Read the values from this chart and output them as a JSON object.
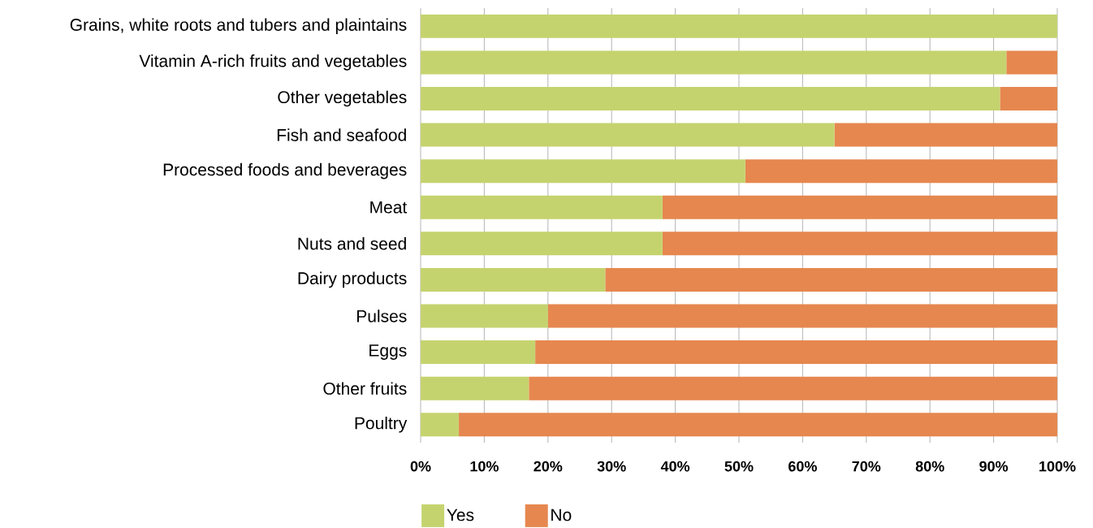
{
  "chart_data": {
    "type": "bar",
    "orientation": "horizontal",
    "stacked": true,
    "categories": [
      "Grains, white roots and tubers and plaintains",
      "Vitamin A-rich fruits and vegetables",
      "Other vegetables",
      "Fish and seafood",
      "Processed foods and beverages",
      "Meat",
      "Nuts and seed",
      "Dairy products",
      "Pulses",
      "Eggs",
      "Other fruits",
      "Poultry"
    ],
    "series": [
      {
        "name": "Yes",
        "color": "#c5d36e",
        "values": [
          100,
          92,
          91,
          65,
          51,
          38,
          38,
          29,
          20,
          18,
          17,
          6
        ]
      },
      {
        "name": "No",
        "color": "#e6874f",
        "values": [
          0,
          8,
          9,
          35,
          49,
          62,
          62,
          71,
          80,
          82,
          83,
          94
        ]
      }
    ],
    "xlim": [
      0,
      100
    ],
    "xticks": [
      {
        "value": 0,
        "label": "0%"
      },
      {
        "value": 10,
        "label": "10%"
      },
      {
        "value": 20,
        "label": "20%"
      },
      {
        "value": 30,
        "label": "30%"
      },
      {
        "value": 40,
        "label": "40%"
      },
      {
        "value": 50,
        "label": "50%"
      },
      {
        "value": 60,
        "label": "60%"
      },
      {
        "value": 70,
        "label": "70%"
      },
      {
        "value": 80,
        "label": "80%"
      },
      {
        "value": 90,
        "label": "90%"
      },
      {
        "value": 100,
        "label": "100%"
      }
    ],
    "grid": "x",
    "legend": "bottom"
  }
}
